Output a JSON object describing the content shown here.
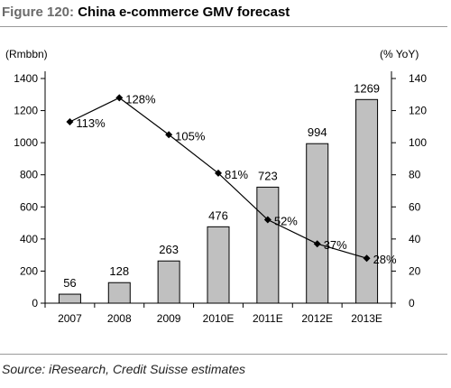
{
  "figure": {
    "label": "Figure 120:",
    "title": "China e-commerce GMV forecast",
    "source": "Source: iResearch, Credit Suisse estimates"
  },
  "chart_data": {
    "type": "bar",
    "categories": [
      "2007",
      "2008",
      "2009",
      "2010E",
      "2011E",
      "2012E",
      "2013E"
    ],
    "series": [
      {
        "type": "bar",
        "axis": "left",
        "values": [
          56,
          128,
          263,
          476,
          723,
          994,
          1269
        ],
        "labels": [
          "56",
          "128",
          "263",
          "476",
          "723",
          "994",
          "1269"
        ],
        "color": "#c0c0c0"
      },
      {
        "type": "line",
        "axis": "right",
        "values": [
          113,
          128,
          105,
          81,
          52,
          37,
          28
        ],
        "labels": [
          "113%",
          "128%",
          "105%",
          "81%",
          "52%",
          "37%",
          "28%"
        ],
        "color": "#000000"
      }
    ],
    "y_left": {
      "label": "(Rmbbn)",
      "range": [
        0,
        1400
      ],
      "ticks": [
        "0",
        "200",
        "400",
        "600",
        "800",
        "1000",
        "1200",
        "1400"
      ]
    },
    "y_right": {
      "label": "(% YoY)",
      "range": [
        0,
        140
      ],
      "ticks": [
        "0",
        "20",
        "40",
        "60",
        "80",
        "100",
        "120",
        "140"
      ]
    },
    "grid": false,
    "legend": "none"
  }
}
